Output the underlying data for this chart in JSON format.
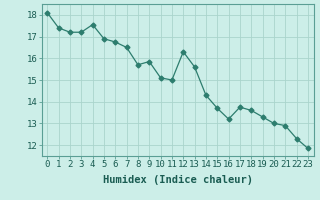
{
  "x": [
    0,
    1,
    2,
    3,
    4,
    5,
    6,
    7,
    8,
    9,
    10,
    11,
    12,
    13,
    14,
    15,
    16,
    17,
    18,
    19,
    20,
    21,
    22,
    23
  ],
  "y": [
    18.1,
    17.4,
    17.2,
    17.2,
    17.55,
    16.9,
    16.75,
    16.5,
    15.7,
    15.85,
    15.1,
    15.0,
    16.3,
    15.6,
    14.3,
    13.7,
    13.2,
    13.75,
    13.6,
    13.3,
    13.0,
    12.9,
    12.3,
    11.85
  ],
  "line_color": "#2d7d6e",
  "marker": "D",
  "marker_size": 2.5,
  "bg_color": "#cceee8",
  "grid_color": "#aad4cc",
  "xlabel": "Humidex (Indice chaleur)",
  "xlabel_fontsize": 7.5,
  "ylim": [
    11.5,
    18.5
  ],
  "xlim": [
    -0.5,
    23.5
  ],
  "yticks": [
    12,
    13,
    14,
    15,
    16,
    17,
    18
  ],
  "xticks": [
    0,
    1,
    2,
    3,
    4,
    5,
    6,
    7,
    8,
    9,
    10,
    11,
    12,
    13,
    14,
    15,
    16,
    17,
    18,
    19,
    20,
    21,
    22,
    23
  ],
  "tick_fontsize": 6.5,
  "line_width": 0.9
}
